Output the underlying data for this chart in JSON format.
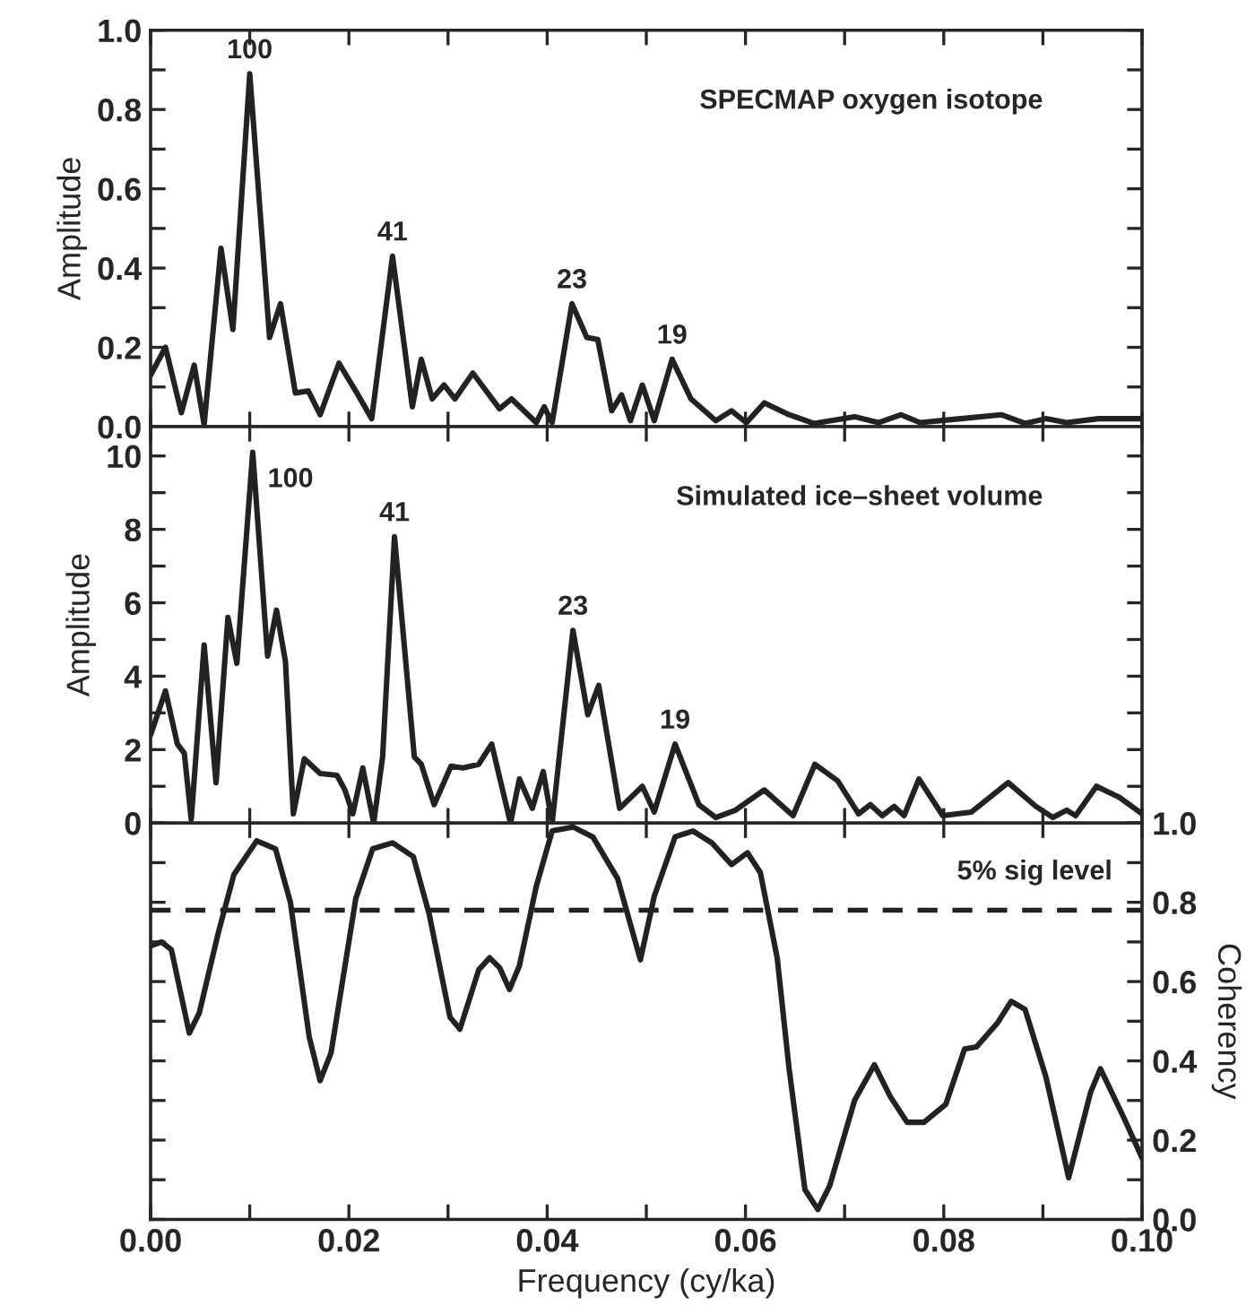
{
  "chart_data": [
    {
      "type": "line",
      "ylabel": "Amplitude",
      "xlim": [
        0,
        0.1
      ],
      "ylim": [
        0,
        1.0
      ],
      "tick_labels": "y",
      "xticks": [
        {
          "value": 0,
          "label": null
        },
        {
          "value": 0.01,
          "label": null
        },
        {
          "value": 0.02,
          "label": null
        },
        {
          "value": 0.03,
          "label": null
        },
        {
          "value": 0.04,
          "label": null
        },
        {
          "value": 0.05,
          "label": null
        },
        {
          "value": 0.06,
          "label": null
        },
        {
          "value": 0.07,
          "label": null
        },
        {
          "value": 0.08,
          "label": null
        },
        {
          "value": 0.09,
          "label": null
        },
        {
          "value": 0.1,
          "label": null
        }
      ],
      "yticks": [
        {
          "value": 0,
          "label": "0.0"
        },
        {
          "value": 0.1,
          "label": null
        },
        {
          "value": 0.2,
          "label": "0.2"
        },
        {
          "value": 0.3,
          "label": null
        },
        {
          "value": 0.4,
          "label": "0.4"
        },
        {
          "value": 0.5,
          "label": null
        },
        {
          "value": 0.6,
          "label": "0.6"
        },
        {
          "value": 0.7,
          "label": null
        },
        {
          "value": 0.8,
          "label": "0.8"
        },
        {
          "value": 0.9,
          "label": null
        },
        {
          "value": 1.0,
          "label": "1.0"
        }
      ],
      "annotations": [
        "SPECMAP oxygen isotope",
        {
          "text": "100",
          "x": 0.01,
          "y": 0.89
        },
        {
          "text": "41",
          "x": 0.0244,
          "y": 0.43
        },
        {
          "text": "23",
          "x": 0.0425,
          "y": 0.31
        },
        {
          "text": "19",
          "x": 0.0526,
          "y": 0.17
        }
      ],
      "series": [
        {
          "color": "#222222",
          "x": [
            0,
            0.0015,
            0.0031,
            0.0044,
            0.0054,
            0.0071,
            0.0083,
            0.01,
            0.012,
            0.0131,
            0.0146,
            0.0159,
            0.0171,
            0.019,
            0.0208,
            0.0223,
            0.0244,
            0.0264,
            0.0273,
            0.0284,
            0.0296,
            0.0307,
            0.0325,
            0.0352,
            0.0364,
            0.0389,
            0.0397,
            0.0405,
            0.0425,
            0.044,
            0.0451,
            0.0465,
            0.0475,
            0.0484,
            0.0496,
            0.0508,
            0.0526,
            0.0545,
            0.057,
            0.0586,
            0.0601,
            0.0619,
            0.0644,
            0.0669,
            0.071,
            0.0734,
            0.0757,
            0.0776,
            0.0817,
            0.0858,
            0.0882,
            0.0903,
            0.0924,
            0.0956,
            0.1
          ],
          "values": [
            0.13,
            0.2,
            0.035,
            0.155,
            0.005,
            0.45,
            0.245,
            0.89,
            0.225,
            0.31,
            0.085,
            0.09,
            0.03,
            0.16,
            0.085,
            0.02,
            0.43,
            0.05,
            0.17,
            0.07,
            0.105,
            0.07,
            0.135,
            0.045,
            0.07,
            0.01,
            0.05,
            0.01,
            0.31,
            0.225,
            0.22,
            0.04,
            0.08,
            0.015,
            0.105,
            0.015,
            0.17,
            0.07,
            0.015,
            0.04,
            0.01,
            0.06,
            0.03,
            0.008,
            0.025,
            0.01,
            0.03,
            0.01,
            0.02,
            0.03,
            0.008,
            0.02,
            0.01,
            0.02,
            0.02
          ]
        }
      ]
    },
    {
      "type": "line",
      "ylabel": "Amplitude",
      "xlim": [
        0,
        0.1
      ],
      "ylim": [
        0,
        10.8
      ],
      "tick_labels": "y",
      "xticks": [
        {
          "value": 0,
          "label": null
        },
        {
          "value": 0.01,
          "label": null
        },
        {
          "value": 0.02,
          "label": null
        },
        {
          "value": 0.03,
          "label": null
        },
        {
          "value": 0.04,
          "label": null
        },
        {
          "value": 0.05,
          "label": null
        },
        {
          "value": 0.06,
          "label": null
        },
        {
          "value": 0.07,
          "label": null
        },
        {
          "value": 0.08,
          "label": null
        },
        {
          "value": 0.09,
          "label": null
        },
        {
          "value": 0.1,
          "label": null
        }
      ],
      "yticks": [
        0,
        {
          "value": 1,
          "label": null
        },
        2,
        {
          "value": 3,
          "label": null
        },
        4,
        {
          "value": 5,
          "label": null
        },
        6,
        {
          "value": 7,
          "label": null
        },
        8,
        {
          "value": 9,
          "label": null
        },
        10
      ],
      "annotations": [
        "Simulated ice–sheet volume",
        {
          "text": "100",
          "x": 0.0103,
          "y": 10.1
        },
        {
          "text": "41",
          "x": 0.0246,
          "y": 7.8
        },
        {
          "text": "23",
          "x": 0.0426,
          "y": 5.25
        },
        {
          "text": "19",
          "x": 0.0529,
          "y": 2.15
        }
      ],
      "series": [
        {
          "color": "#222222",
          "x": [
            0,
            0.0015,
            0.0027,
            0.0034,
            0.0041,
            0.0054,
            0.0066,
            0.0078,
            0.0087,
            0.0103,
            0.0118,
            0.0127,
            0.0136,
            0.0144,
            0.0155,
            0.0171,
            0.0188,
            0.0196,
            0.0204,
            0.0214,
            0.0225,
            0.0234,
            0.0246,
            0.0266,
            0.0273,
            0.0286,
            0.0303,
            0.0315,
            0.0331,
            0.0344,
            0.0363,
            0.0372,
            0.0385,
            0.0396,
            0.0405,
            0.0426,
            0.0441,
            0.0452,
            0.0473,
            0.0496,
            0.0508,
            0.0529,
            0.0553,
            0.057,
            0.059,
            0.0619,
            0.0648,
            0.067,
            0.0693,
            0.0714,
            0.0726,
            0.0738,
            0.075,
            0.076,
            0.0775,
            0.0799,
            0.0828,
            0.0865,
            0.0893,
            0.091,
            0.0924,
            0.0933,
            0.0954,
            0.0977,
            0.1
          ],
          "values": [
            2.4,
            3.6,
            2.15,
            1.9,
            0.1,
            4.85,
            1.1,
            5.6,
            4.35,
            10.1,
            4.55,
            5.8,
            4.4,
            0.25,
            1.75,
            1.35,
            1.3,
            0.9,
            0.25,
            1.5,
            0,
            1.8,
            7.8,
            1.8,
            1.6,
            0.5,
            1.55,
            1.5,
            1.6,
            2.15,
            0,
            1.2,
            0.4,
            1.4,
            0,
            5.25,
            2.95,
            3.75,
            0.4,
            1.0,
            0.3,
            2.15,
            0.5,
            0.15,
            0.35,
            0.9,
            0.2,
            1.6,
            1.15,
            0.25,
            0.5,
            0.2,
            0.45,
            0.2,
            1.2,
            0.2,
            0.3,
            1.1,
            0.45,
            0.15,
            0.35,
            0.2,
            1.0,
            0.7,
            0.25
          ]
        }
      ]
    },
    {
      "type": "line",
      "xlabel": "Frequency (cy/ka)",
      "y2label": "Coherency",
      "xlim": [
        0,
        0.1
      ],
      "y2lim": [
        0,
        1.0
      ],
      "xticks": [
        {
          "value": 0,
          "label": "0.00"
        },
        {
          "value": 0.01,
          "label": null
        },
        {
          "value": 0.02,
          "label": "0.02"
        },
        {
          "value": 0.03,
          "label": null
        },
        {
          "value": 0.04,
          "label": "0.04"
        },
        {
          "value": 0.05,
          "label": null
        },
        {
          "value": 0.06,
          "label": "0.06"
        },
        {
          "value": 0.07,
          "label": null
        },
        {
          "value": 0.08,
          "label": "0.08"
        },
        {
          "value": 0.09,
          "label": null
        },
        {
          "value": 0.1,
          "label": "0.10"
        }
      ],
      "y2ticks": [
        {
          "value": 0,
          "label": "0.0"
        },
        {
          "value": 0.1,
          "label": null
        },
        {
          "value": 0.2,
          "label": "0.2"
        },
        {
          "value": 0.3,
          "label": null
        },
        {
          "value": 0.4,
          "label": "0.4"
        },
        {
          "value": 0.5,
          "label": null
        },
        {
          "value": 0.6,
          "label": "0.6"
        },
        {
          "value": 0.7,
          "label": null
        },
        {
          "value": 0.8,
          "label": "0.8"
        },
        {
          "value": 0.9,
          "label": null
        },
        {
          "value": 1.0,
          "label": "1.0"
        }
      ],
      "ref_lines": [
        {
          "axis": "y2",
          "value": 0.78,
          "label": "5% sig level",
          "line_style": "dashed",
          "color": "#222222"
        }
      ],
      "series": [
        {
          "color": "#222222",
          "axis": "y2",
          "x": [
            0,
            0.0011,
            0.0021,
            0.0039,
            0.0049,
            0.0068,
            0.0084,
            0.0107,
            0.0126,
            0.0141,
            0.016,
            0.0171,
            0.0182,
            0.0207,
            0.0224,
            0.0244,
            0.0265,
            0.0281,
            0.0302,
            0.0312,
            0.0331,
            0.0342,
            0.0352,
            0.0362,
            0.0372,
            0.0389,
            0.0405,
            0.0426,
            0.0446,
            0.0471,
            0.0494,
            0.0508,
            0.0529,
            0.0547,
            0.0566,
            0.0586,
            0.0602,
            0.0615,
            0.0632,
            0.0644,
            0.066,
            0.0673,
            0.0685,
            0.071,
            0.073,
            0.0746,
            0.0763,
            0.078,
            0.0802,
            0.0821,
            0.0833,
            0.0854,
            0.0868,
            0.0882,
            0.0903,
            0.0926,
            0.0948,
            0.0958,
            0.0981,
            0.1
          ],
          "values": [
            0.69,
            0.7,
            0.68,
            0.47,
            0.52,
            0.72,
            0.87,
            0.955,
            0.935,
            0.8,
            0.46,
            0.35,
            0.42,
            0.81,
            0.935,
            0.95,
            0.915,
            0.77,
            0.51,
            0.48,
            0.63,
            0.66,
            0.635,
            0.58,
            0.64,
            0.84,
            0.98,
            0.99,
            0.965,
            0.86,
            0.655,
            0.815,
            0.965,
            0.98,
            0.95,
            0.895,
            0.925,
            0.875,
            0.66,
            0.38,
            0.075,
            0.025,
            0.085,
            0.3,
            0.39,
            0.31,
            0.245,
            0.245,
            0.29,
            0.43,
            0.435,
            0.495,
            0.55,
            0.53,
            0.36,
            0.105,
            0.32,
            0.38,
            0.26,
            0.155
          ]
        }
      ]
    }
  ]
}
